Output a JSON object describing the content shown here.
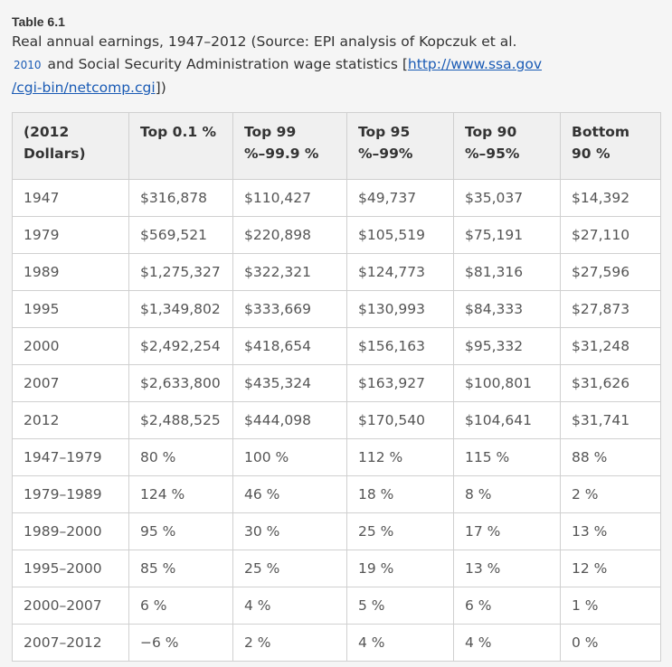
{
  "table_label": "Table 6.1",
  "caption": {
    "text_before": "Real annual earnings, 1947–2012 (Source: EPI analysis of Kopczuk et al.",
    "citation": "2010",
    "text_middle": "and Social Security Administration wage statistics [",
    "url_line1": "http://www.ssa.gov",
    "url_line2": "/cgi-bin/netcomp.cgi",
    "text_after": "])"
  },
  "headers": [
    [
      "(2012",
      "Dollars)"
    ],
    [
      "Top 0.1 %",
      ""
    ],
    [
      "Top 99",
      "%–99.9 %"
    ],
    [
      "Top 95",
      "%–99%"
    ],
    [
      "Top 90",
      "%–95%"
    ],
    [
      "Bottom",
      "90 %"
    ]
  ],
  "rows": [
    [
      "1947",
      "$316,878",
      "$110,427",
      "$49,737",
      "$35,037",
      "$14,392"
    ],
    [
      "1979",
      "$569,521",
      "$220,898",
      "$105,519",
      "$75,191",
      "$27,110"
    ],
    [
      "1989",
      "$1,275,327",
      "$322,321",
      "$124,773",
      "$81,316",
      "$27,596"
    ],
    [
      "1995",
      "$1,349,802",
      "$333,669",
      "$130,993",
      "$84,333",
      "$27,873"
    ],
    [
      "2000",
      "$2,492,254",
      "$418,654",
      "$156,163",
      "$95,332",
      "$31,248"
    ],
    [
      "2007",
      "$2,633,800",
      "$435,324",
      "$163,927",
      "$100,801",
      "$31,626"
    ],
    [
      "2012",
      "$2,488,525",
      "$444,098",
      "$170,540",
      "$104,641",
      "$31,741"
    ],
    [
      "1947–1979",
      "80 %",
      "100 %",
      "112 %",
      "115 %",
      "88 %"
    ],
    [
      "1979–1989",
      "124 %",
      "46 %",
      "18 %",
      "8 %",
      "2 %"
    ],
    [
      "1989–2000",
      "95 %",
      "30 %",
      "25 %",
      "17 %",
      "13 %"
    ],
    [
      "1995–2000",
      "85 %",
      "25 %",
      "19 %",
      "13 %",
      "12 %"
    ],
    [
      "2000–2007",
      "6 %",
      "4 %",
      "5 %",
      "6 %",
      "1 %"
    ],
    [
      "2007–2012",
      "−6 %",
      "2 %",
      "4 %",
      "4 %",
      "0 %"
    ]
  ]
}
